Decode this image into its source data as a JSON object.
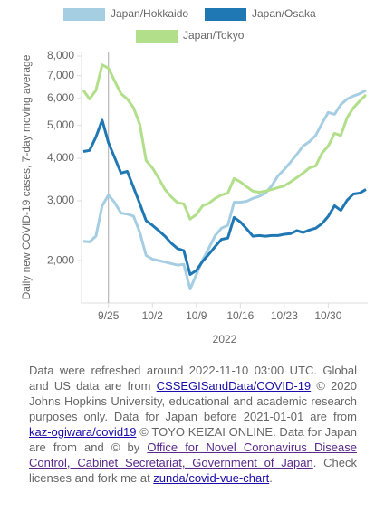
{
  "chart_data": {
    "type": "line",
    "y_label": "Daily new COVID-19 cases, 7-day moving average",
    "x_label": "2022",
    "log_y": true,
    "xlim": [
      "2022-09-21",
      "2022-11-05"
    ],
    "xticks": [
      {
        "value": "2022-09-25",
        "label": "9/25"
      },
      {
        "value": "2022-10-02",
        "label": "10/2"
      },
      {
        "value": "2022-10-09",
        "label": "10/9"
      },
      {
        "value": "2022-10-16",
        "label": "10/16"
      },
      {
        "value": "2022-10-23",
        "label": "10/23"
      },
      {
        "value": "2022-10-30",
        "label": "10/30"
      }
    ],
    "ylim": [
      1500,
      8000
    ],
    "yticks": [
      {
        "value": 2000,
        "label": "2,000"
      },
      {
        "value": 3000,
        "label": "3,000"
      },
      {
        "value": 4000,
        "label": "4,000"
      },
      {
        "value": 5000,
        "label": "5,000"
      },
      {
        "value": 6000,
        "label": "6,000"
      },
      {
        "value": 7000,
        "label": "7,000"
      },
      {
        "value": 8000,
        "label": "8,000"
      }
    ],
    "x": [
      "2022-09-21",
      "2022-09-22",
      "2022-09-23",
      "2022-09-24",
      "2022-09-25",
      "2022-09-26",
      "2022-09-27",
      "2022-09-28",
      "2022-09-29",
      "2022-09-30",
      "2022-10-01",
      "2022-10-02",
      "2022-10-03",
      "2022-10-04",
      "2022-10-05",
      "2022-10-06",
      "2022-10-07",
      "2022-10-08",
      "2022-10-09",
      "2022-10-10",
      "2022-10-11",
      "2022-10-12",
      "2022-10-13",
      "2022-10-14",
      "2022-10-15",
      "2022-10-16",
      "2022-10-17",
      "2022-10-18",
      "2022-10-19",
      "2022-10-20",
      "2022-10-21",
      "2022-10-22",
      "2022-10-23",
      "2022-10-24",
      "2022-10-25",
      "2022-10-26",
      "2022-10-27",
      "2022-10-28",
      "2022-10-29",
      "2022-10-30",
      "2022-10-31",
      "2022-11-01",
      "2022-11-02",
      "2022-11-03",
      "2022-11-04",
      "2022-11-05"
    ],
    "series": [
      {
        "name": "Japan/Hokkaido",
        "color": "#a6cee3",
        "values": [
          2280,
          2270,
          2360,
          2900,
          3120,
          2960,
          2760,
          2740,
          2700,
          2420,
          2070,
          2020,
          2000,
          1980,
          1960,
          1940,
          1950,
          1650,
          1820,
          2010,
          2180,
          2370,
          2490,
          2540,
          2970,
          2970,
          2990,
          3050,
          3090,
          3160,
          3320,
          3550,
          3710,
          3900,
          4110,
          4350,
          4480,
          4670,
          5070,
          5460,
          5390,
          5760,
          5980,
          6100,
          6200,
          6340
        ]
      },
      {
        "name": "Japan/Osaka",
        "color": "#1f78b4",
        "values": [
          4190,
          4220,
          4620,
          5180,
          4450,
          4010,
          3620,
          3660,
          3280,
          2940,
          2620,
          2540,
          2450,
          2360,
          2250,
          2170,
          2140,
          1820,
          1870,
          1990,
          2090,
          2200,
          2310,
          2330,
          2680,
          2600,
          2480,
          2360,
          2370,
          2360,
          2370,
          2370,
          2390,
          2400,
          2450,
          2420,
          2460,
          2490,
          2570,
          2700,
          2900,
          2810,
          3010,
          3140,
          3160,
          3240
        ]
      },
      {
        "name": "Japan/Tokyo",
        "color": "#b2df8a",
        "values": [
          6340,
          5980,
          6340,
          7540,
          7370,
          6740,
          6200,
          5980,
          5630,
          5030,
          3940,
          3750,
          3490,
          3240,
          3080,
          2960,
          2940,
          2650,
          2730,
          2900,
          2950,
          3050,
          3120,
          3160,
          3490,
          3410,
          3300,
          3200,
          3180,
          3200,
          3240,
          3280,
          3320,
          3410,
          3510,
          3620,
          3750,
          3800,
          4140,
          4350,
          4740,
          4670,
          5270,
          5630,
          5900,
          6150
        ]
      }
    ]
  },
  "note": [
    {
      "text": "Data were refreshed around 2022-11-10 03:00 UTC. Global and US data are from "
    },
    {
      "link": "CSSEGISandData/COVID-19"
    },
    {
      "text": " © 2020 Johns Hopkins University, educational and academic research purposes only. Data for Japan before 2021-01-01 are from "
    },
    {
      "link": "kaz-ogiwara/covid19"
    },
    {
      "text": " © TOYO KEIZAI ONLINE. Data for Japan are from and © by "
    },
    {
      "link": "Office for Novel Coronavirus Disease Control, Cabinet Secretariat, Government of Japan"
    },
    {
      "text": ". Check licenses and fork me at "
    },
    {
      "link": "zunda/covid-vue-chart"
    },
    {
      "text": "."
    }
  ]
}
